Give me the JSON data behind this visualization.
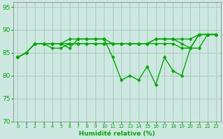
{
  "title": "",
  "xlabel": "Humidité relative (%)",
  "ylabel": "",
  "xlim": [
    -0.5,
    23.5
  ],
  "ylim": [
    70,
    96
  ],
  "yticks": [
    70,
    75,
    80,
    85,
    90,
    95
  ],
  "xticks": [
    0,
    1,
    2,
    3,
    4,
    5,
    6,
    7,
    8,
    9,
    10,
    11,
    12,
    13,
    14,
    15,
    16,
    17,
    18,
    19,
    20,
    21,
    22,
    23
  ],
  "bg_color": "#cce8e0",
  "grid_color": "#aaccbb",
  "line_color": "#00aa00",
  "markersize": 2.5,
  "linewidth": 1.0,
  "series": [
    [
      84,
      85,
      87,
      87,
      87,
      87,
      86,
      88,
      88,
      88,
      88,
      84,
      79,
      80,
      79,
      82,
      78,
      84,
      81,
      80,
      86,
      89,
      89,
      89
    ],
    [
      84,
      85,
      87,
      87,
      87,
      87,
      88,
      88,
      88,
      88,
      88,
      87,
      87,
      87,
      87,
      87,
      88,
      88,
      88,
      88,
      88,
      89,
      89,
      89
    ],
    [
      84,
      85,
      87,
      87,
      86,
      86,
      87,
      87,
      87,
      87,
      87,
      87,
      87,
      87,
      87,
      87,
      88,
      88,
      88,
      87,
      86,
      89,
      89,
      89
    ],
    [
      84,
      85,
      87,
      87,
      87,
      87,
      87,
      87,
      87,
      87,
      87,
      87,
      87,
      87,
      87,
      87,
      87,
      87,
      87,
      86,
      86,
      86,
      89,
      89
    ]
  ]
}
